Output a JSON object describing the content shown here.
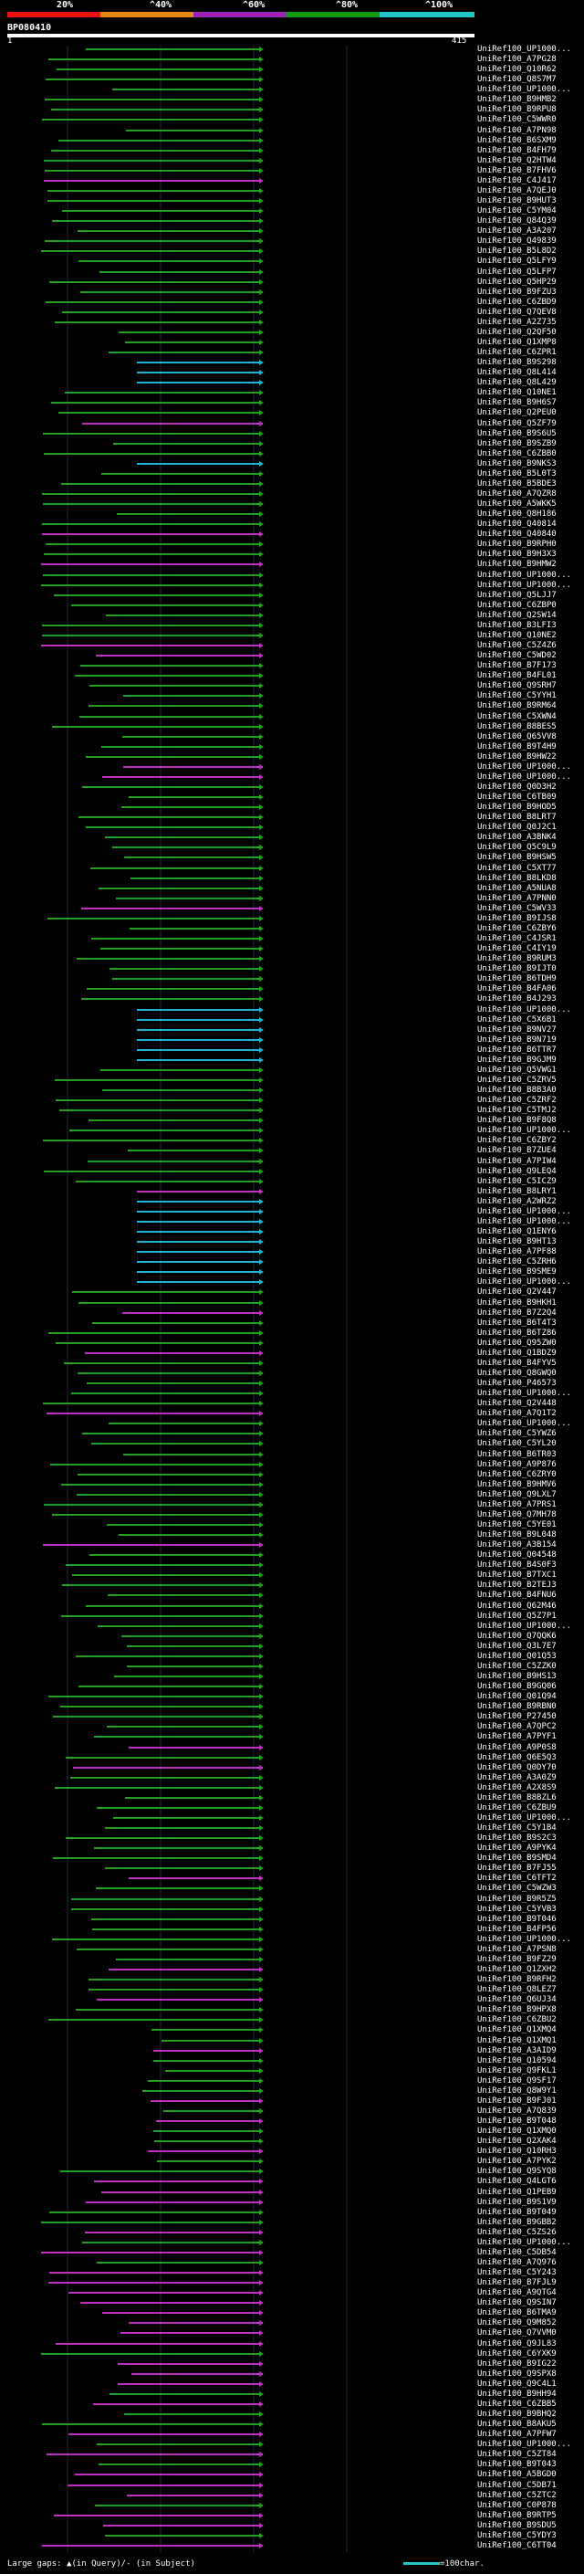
{
  "header": {
    "query_name": "BP080410",
    "range_start": "1",
    "range_end": "415",
    "scale_labels": [
      "20%",
      "^40%",
      "^60%",
      "^80%",
      "^100%"
    ],
    "scale_colors": [
      "#e11",
      "#e78a11",
      "#9b22b5",
      "#119b11",
      "#22c4c4"
    ]
  },
  "colors": {
    "magenta": "#c030c0",
    "green": "#22a022",
    "cyan": "#22b4d4",
    "lime": "#77e04a",
    "grid": "#1f2a44"
  },
  "footer": {
    "left_text": "Large gaps: ▲(in Query)/- (in Subject)",
    "right_text": "=100char."
  },
  "labels": [
    "UniRef100_UP1000...",
    "UniRef100_A7PG28",
    "UniRef100_Q10R62",
    "UniRef100_Q8S7M7",
    "UniRef100_UP1000...",
    "UniRef100_B9HMB2",
    "UniRef100_B9RPU8",
    "UniRef100_C5WWR0",
    "UniRef100_A7PN98",
    "UniRef100_B6SXM9",
    "UniRef100_B4FH79",
    "UniRef100_Q2HTW4",
    "UniRef100_B7FHV6",
    "UniRef100_C4J417",
    "UniRef100_A7QEJ0",
    "UniRef100_B9HUT3",
    "UniRef100_C5YM04",
    "UniRef100_Q84Q39",
    "UniRef100_A3A207",
    "UniRef100_Q49839",
    "UniRef100_B5L8D2",
    "UniRef100_Q5LFY9",
    "UniRef100_Q5LFP7",
    "UniRef100_Q5HP29",
    "UniRef100_B9FZU3",
    "UniRef100_C6ZBD9",
    "UniRef100_Q7QEV8",
    "UniRef100_A2Z735",
    "UniRef100_Q2QF50",
    "UniRef100_Q1XMP8",
    "UniRef100_C6ZPR1",
    "UniRef100_B9S298",
    "UniRef100_Q8L414",
    "UniRef100_Q8L429",
    "UniRef100_Q10NE1",
    "UniRef100_B9H6S7",
    "UniRef100_Q2PEU0",
    "UniRef100_Q5ZF79",
    "UniRef100_B9S6U5",
    "UniRef100_B9SZB9",
    "UniRef100_C6ZBB0",
    "UniRef100_B9NKS3",
    "UniRef100_B5L0T3",
    "UniRef100_B5BDE3",
    "UniRef100_A7QZR8",
    "UniRef100_A5WKK5",
    "UniRef100_Q8H186",
    "UniRef100_Q40814",
    "UniRef100_Q40840",
    "UniRef100_B9RPH0",
    "UniRef100_B9H3X3",
    "UniRef100_B9HMW2",
    "UniRef100_UP1000...",
    "UniRef100_UP1000...",
    "UniRef100_Q5LJJ7",
    "UniRef100_C6ZBP0",
    "UniRef100_Q2SW14",
    "UniRef100_B3LFI3",
    "UniRef100_Q10NE2",
    "UniRef100_C5Z4Z6",
    "UniRef100_C5WD02",
    "UniRef100_B7F173",
    "UniRef100_B4FL01",
    "UniRef100_Q9SRH7",
    "UniRef100_C5YYH1",
    "UniRef100_B9RM64",
    "UniRef100_C5XWN4",
    "UniRef100_B8BES5",
    "UniRef100_Q65VV8",
    "UniRef100_B9T4H9",
    "UniRef100_B9HW22",
    "UniRef100_UP1000...",
    "UniRef100_UP1000...",
    "UniRef100_Q0D3H2",
    "UniRef100_C6TB09",
    "UniRef100_B9HOD5",
    "UniRef100_B8LRT7",
    "UniRef100_Q0J2C1",
    "UniRef100_A3BNK4",
    "UniRef100_Q5C9L9",
    "UniRef100_B9HSW5",
    "UniRef100_C5XT77",
    "UniRef100_B8LKD8",
    "UniRef100_A5NUA8",
    "UniRef100_A7PNN0",
    "UniRef100_C5WV33",
    "UniRef100_B9IJS8",
    "UniRef100_C6ZBY6",
    "UniRef100_C4JSR1",
    "UniRef100_C4IY19",
    "UniRef100_B9RUM3",
    "UniRef100_B9IJT0",
    "UniRef100_B6TDH9",
    "UniRef100_B4FA06",
    "UniRef100_B4J293",
    "UniRef100_UP1000...",
    "UniRef100_C5X6B1",
    "UniRef100_B9NV27",
    "UniRef100_B9N719",
    "UniRef100_B6TTR7",
    "UniRef100_B9GJM9",
    "UniRef100_Q5VWG1",
    "UniRef100_C5ZRV5",
    "UniRef100_B8B3A0",
    "UniRef100_C5ZRF2",
    "UniRef100_C5TMJ2",
    "UniRef100_B9F8Q8",
    "UniRef100_UP1000...",
    "UniRef100_C6ZBY2",
    "UniRef100_B7ZUE4",
    "UniRef100_A7PIW4",
    "UniRef100_Q9LEQ4",
    "UniRef100_C5ICZ9",
    "UniRef100_B8LRY1",
    "UniRef100_A2WRZ2",
    "UniRef100_UP1000...",
    "UniRef100_UP1000...",
    "UniRef100_Q1ENY6",
    "UniRef100_B9HT13",
    "UniRef100_A7PF88",
    "UniRef100_C5ZRH6",
    "UniRef100_B9SME9",
    "UniRef100_UP1000...",
    "UniRef100_Q2V447",
    "UniRef100_B9HKH1",
    "UniRef100_B7Z2Q4",
    "UniRef100_B6T4T3",
    "UniRef100_B6TZ86",
    "UniRef100_Q95ZW0",
    "UniRef100_Q1BDZ9",
    "UniRef100_B4FYV5",
    "UniRef100_Q8GWQ0",
    "UniRef100_P46573",
    "UniRef100_UP1000...",
    "UniRef100_Q2V448",
    "UniRef100_A7Q1T2",
    "UniRef100_UP1000...",
    "UniRef100_C5YWZ6",
    "UniRef100_C5YL20",
    "UniRef100_B6TR03",
    "UniRef100_A9P876",
    "UniRef100_C6ZRY0",
    "UniRef100_B9HMV6",
    "UniRef100_Q9LXL7",
    "UniRef100_A7PRS1",
    "UniRef100_Q7MH78",
    "UniRef100_C5YE01",
    "UniRef100_B9L048",
    "UniRef100_A3B154",
    "UniRef100_Q04548",
    "UniRef100_B4S0F3",
    "UniRef100_B7TXC1",
    "UniRef100_B2TEJ3",
    "UniRef100_B4FNU6",
    "UniRef100_Q62M46",
    "UniRef100_Q5Z7P1",
    "UniRef100_UP1000...",
    "UniRef100_Q7QQK6",
    "UniRef100_Q3L7E7",
    "UniRef100_Q01Q53",
    "UniRef100_C5ZZK0",
    "UniRef100_B9HS13",
    "UniRef100_B9GQ06",
    "UniRef100_Q01Q94",
    "UniRef100_B9RBN0",
    "UniRef100_P27450",
    "UniRef100_A7QPC2",
    "UniRef100_A7PYF1",
    "UniRef100_A9P0S8",
    "UniRef100_Q6E5Q3",
    "UniRef100_Q0DY70",
    "UniRef100_A3A0Z9",
    "UniRef100_A2X8S9",
    "UniRef100_B8BZL6",
    "UniRef100_C6ZBU9",
    "UniRef100_UP1000...",
    "UniRef100_C5Y1B4",
    "UniRef100_B9S2C3",
    "UniRef100_A9PYK4",
    "UniRef100_B9SMD4",
    "UniRef100_B7FJ55",
    "UniRef100_C6TFT2",
    "UniRef100_C5WZW3",
    "UniRef100_B9R5Z5",
    "UniRef100_C5YVB3",
    "UniRef100_B9T046",
    "UniRef100_B4FP56",
    "UniRef100_UP1000...",
    "UniRef100_A7PSN8",
    "UniRef100_B9FZ29",
    "UniRef100_Q1ZXH2",
    "UniRef100_B9RFH2",
    "UniRef100_Q8LEZ7",
    "UniRef100_Q6UJ34",
    "UniRef100_B9HPX8",
    "UniRef100_C6ZBU2",
    "UniRef100_Q1XMQ4",
    "UniRef100_Q1XMQ1",
    "UniRef100_A3AID9",
    "UniRef100_Q10594",
    "UniRef100_Q9FKL1",
    "UniRef100_Q9SF17",
    "UniRef100_Q8W9Y1",
    "UniRef100_B9FJ01",
    "UniRef100_A7Q839",
    "UniRef100_B9T048",
    "UniRef100_Q1XMQ0",
    "UniRef100_Q2XAK4",
    "UniRef100_Q10RH3",
    "UniRef100_A7PYK2",
    "UniRef100_Q9SYQ8",
    "UniRef100_Q4LGT6",
    "UniRef100_Q1PEB9",
    "UniRef100_B9S1V9",
    "UniRef100_B9T049",
    "UniRef100_B9GBB2",
    "UniRef100_C5ZS26",
    "UniRef100_UP1000...",
    "UniRef100_C5DB54",
    "UniRef100_A7Q976",
    "UniRef100_C5Y243",
    "UniRef100_B7FJL9",
    "UniRef100_A9QTG4",
    "UniRef100_Q9SIN7",
    "UniRef100_B6TMA9",
    "UniRef100_Q9M852",
    "UniRef100_Q7VVM0",
    "UniRef100_Q9JL83",
    "UniRef100_C6YXK9",
    "UniRef100_B9IG22",
    "UniRef100_Q9SPX8",
    "UniRef100_Q9C4L1",
    "UniRef100_B9HH94",
    "UniRef100_C6ZBB5",
    "UniRef100_B9BHQ2",
    "UniRef100_B8AKU5",
    "UniRef100_A7PFW7",
    "UniRef100_UP1000...",
    "UniRef100_C5ZT84",
    "UniRef100_B9T043",
    "UniRef100_A5BGD0",
    "UniRef100_C5DB71",
    "UniRef100_C5ZTC2",
    "UniRef100_C0P878",
    "UniRef100_B9RTP5",
    "UniRef100_B9SDU5",
    "UniRef100_C5YDY3",
    "UniRef100_C6TT04"
  ]
}
